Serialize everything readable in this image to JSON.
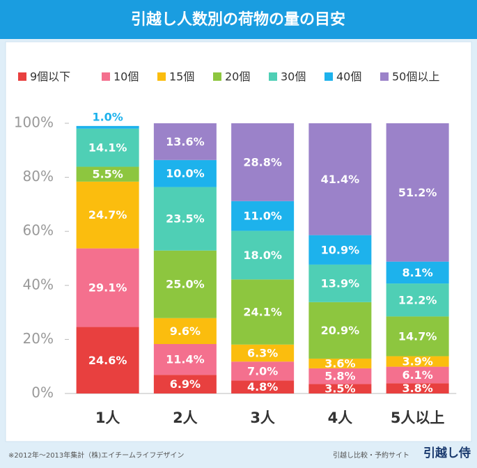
{
  "chart_data": {
    "type": "stacked_bar",
    "title": "引越し人数別の荷物の量の目安",
    "categories": [
      "1人",
      "2人",
      "3人",
      "4人",
      "5人以上"
    ],
    "series": [
      {
        "name": "9個以下",
        "color": "#e8403f",
        "values": [
          24.6,
          6.9,
          4.8,
          3.5,
          3.8
        ],
        "value_labels": [
          "24.6%",
          "6.9%",
          "4.8%",
          "3.5%",
          "3.8%"
        ]
      },
      {
        "name": "10個",
        "color": "#f4708e",
        "values": [
          29.1,
          11.4,
          7.0,
          5.8,
          6.1
        ],
        "value_labels": [
          "29.1%",
          "11.4%",
          "7.0%",
          "5.8%",
          "6.1%"
        ]
      },
      {
        "name": "15個",
        "color": "#fbbd0e",
        "values": [
          24.7,
          9.6,
          6.3,
          3.6,
          3.9
        ],
        "value_labels": [
          "24.7%",
          "9.6%",
          "6.3%",
          "3.6%",
          "3.9%"
        ]
      },
      {
        "name": "20個",
        "color": "#8dc63f",
        "values": [
          5.5,
          25.0,
          24.1,
          20.9,
          14.7
        ],
        "value_labels": [
          "5.5%",
          "25.0%",
          "24.1%",
          "20.9%",
          "14.7%"
        ]
      },
      {
        "name": "30個",
        "color": "#4fcfb5",
        "values": [
          14.1,
          23.5,
          18.0,
          13.9,
          12.2
        ],
        "value_labels": [
          "14.1%",
          "23.5%",
          "18.0%",
          "13.9%",
          "12.2%"
        ]
      },
      {
        "name": "40個",
        "color": "#1db2ec",
        "values": [
          1.0,
          10.0,
          11.0,
          10.9,
          8.1
        ],
        "value_labels": [
          "1.0%",
          "10.0%",
          "11.0%",
          "10.9%",
          "8.1%"
        ]
      },
      {
        "name": "50個以上",
        "color": "#9b82c9",
        "values": [
          null,
          13.6,
          28.8,
          41.4,
          51.2
        ],
        "value_labels": [
          null,
          "13.6%",
          "28.8%",
          "41.4%",
          "51.2%"
        ]
      }
    ],
    "ylim": [
      0,
      100
    ],
    "yticks": [
      {
        "value": 0,
        "label": "0%"
      },
      {
        "value": 20,
        "label": "20%"
      },
      {
        "value": 40,
        "label": "40%"
      },
      {
        "value": 60,
        "label": "60%"
      },
      {
        "value": 80,
        "label": "80%"
      },
      {
        "value": 100,
        "label": "100%"
      }
    ],
    "legend": "top",
    "footnote": "※2012年～2013年集計（株)エイチームライフデザイン",
    "site_label": "引越し比較・予約サイト",
    "brand": "引越し侍"
  }
}
